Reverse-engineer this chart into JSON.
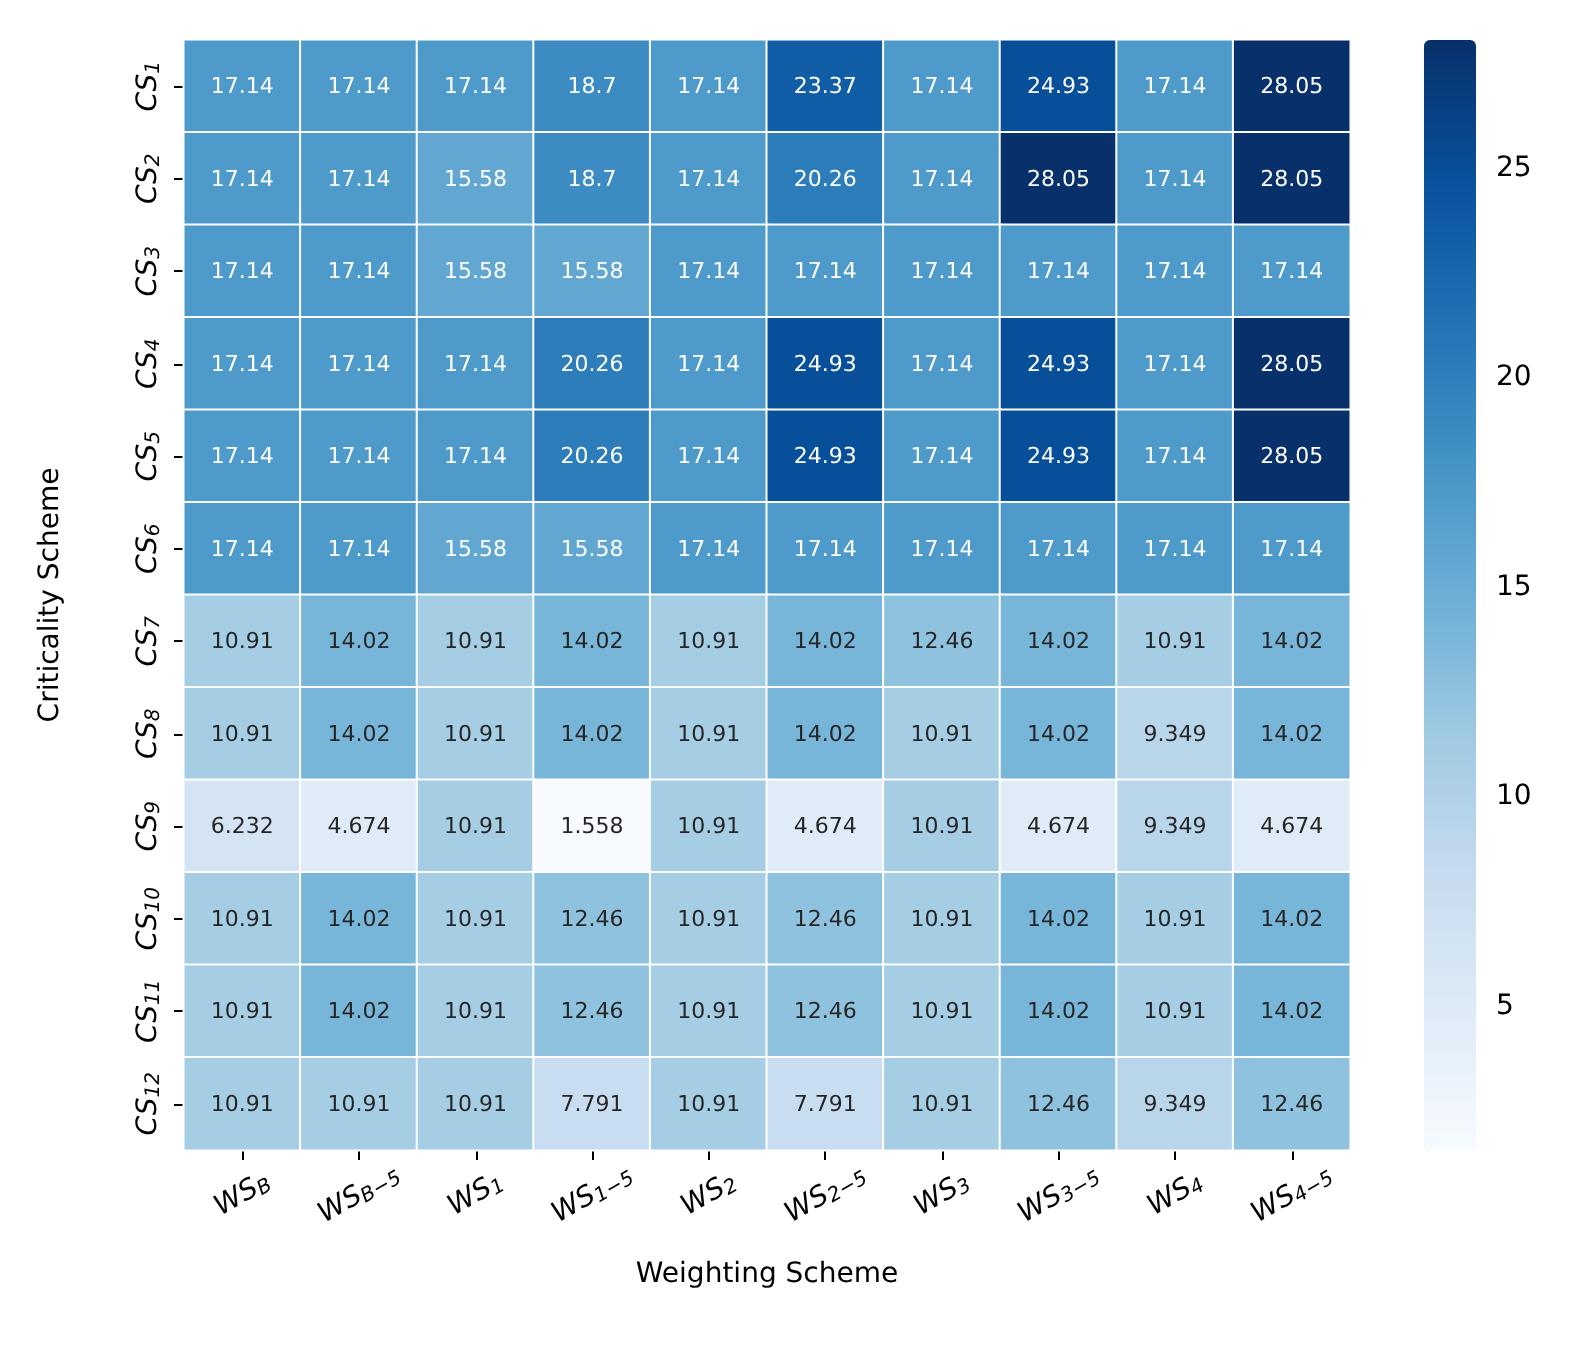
{
  "chart_data": {
    "type": "heatmap",
    "xlabel": "Weighting Scheme",
    "ylabel": "Criticality Scheme",
    "categories": [
      "WS$_{B}$",
      "WS$_{B−5}$",
      "WS$_{1}$",
      "WS$_{1−5}$",
      "WS$_{2}$",
      "WS$_{2−5}$",
      "WS$_{3}$",
      "WS$_{3−5}$",
      "WS$_{4}$",
      "WS$_{4−5}$"
    ],
    "y_categories": [
      "CS$_{1}$",
      "CS$_{2}$",
      "CS$_{3}$",
      "CS$_{4}$",
      "CS$_{5}$",
      "CS$_{6}$",
      "CS$_{7}$",
      "CS$_{8}$",
      "CS$_{9}$",
      "CS$_{10}$",
      "CS$_{11}$",
      "CS$_{12}$"
    ],
    "cells": [
      [
        17.14,
        17.14,
        17.14,
        18.7,
        17.14,
        23.37,
        17.14,
        24.93,
        17.14,
        28.05
      ],
      [
        17.14,
        17.14,
        15.58,
        18.7,
        17.14,
        20.26,
        17.14,
        28.05,
        17.14,
        28.05
      ],
      [
        17.14,
        17.14,
        15.58,
        15.58,
        17.14,
        17.14,
        17.14,
        17.14,
        17.14,
        17.14
      ],
      [
        17.14,
        17.14,
        17.14,
        20.26,
        17.14,
        24.93,
        17.14,
        24.93,
        17.14,
        28.05
      ],
      [
        17.14,
        17.14,
        17.14,
        20.26,
        17.14,
        24.93,
        17.14,
        24.93,
        17.14,
        28.05
      ],
      [
        17.14,
        17.14,
        15.58,
        15.58,
        17.14,
        17.14,
        17.14,
        17.14,
        17.14,
        17.14
      ],
      [
        10.91,
        14.02,
        10.91,
        14.02,
        10.91,
        14.02,
        12.46,
        14.02,
        10.91,
        14.02
      ],
      [
        10.91,
        14.02,
        10.91,
        14.02,
        10.91,
        14.02,
        10.91,
        14.02,
        9.349,
        14.02
      ],
      [
        6.232,
        4.674,
        10.91,
        1.558,
        10.91,
        4.674,
        10.91,
        4.674,
        9.349,
        4.674
      ],
      [
        10.91,
        14.02,
        10.91,
        12.46,
        10.91,
        12.46,
        10.91,
        14.02,
        10.91,
        14.02
      ],
      [
        10.91,
        14.02,
        10.91,
        12.46,
        10.91,
        12.46,
        10.91,
        14.02,
        10.91,
        14.02
      ],
      [
        10.91,
        10.91,
        10.91,
        7.791,
        10.91,
        7.791,
        10.91,
        12.46,
        9.349,
        12.46
      ]
    ],
    "clim": [
      1.558,
      28.05
    ],
    "cticks": [
      5,
      10,
      15,
      20,
      25
    ],
    "data_labels": true
  }
}
